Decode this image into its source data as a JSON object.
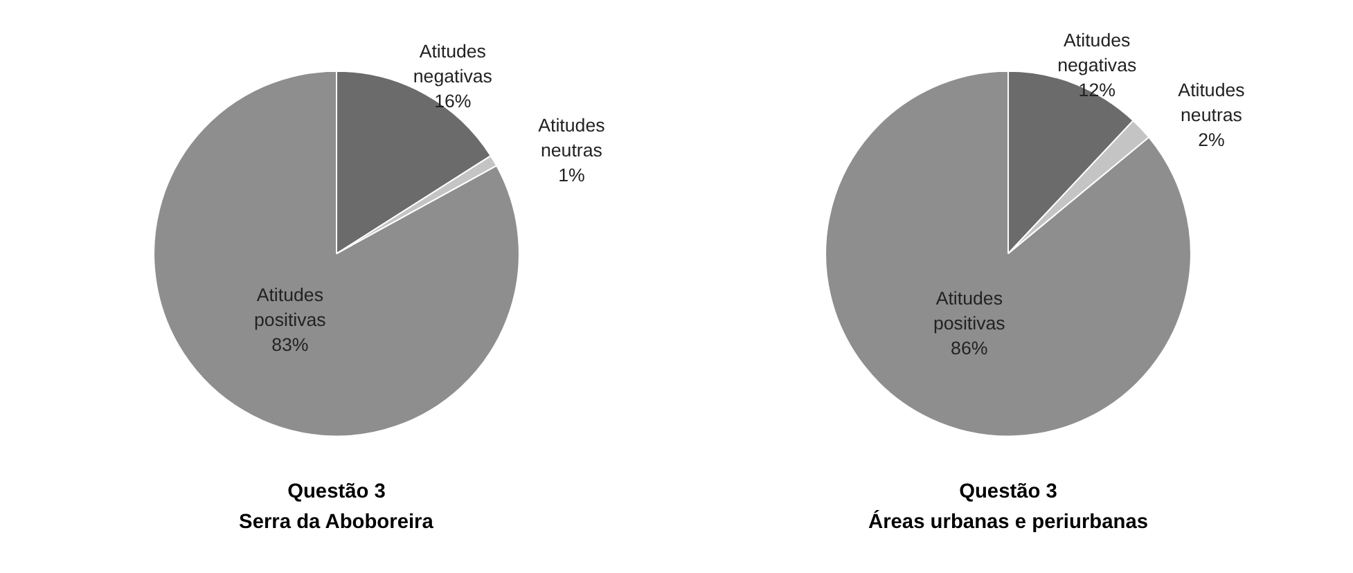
{
  "chart_data": [
    {
      "type": "pie",
      "title": "Questão 3",
      "subtitle": "Serra da Aboboreira",
      "categories": [
        "Atitudes negativas",
        "Atitudes neutras",
        "Atitudes positivas"
      ],
      "values": [
        16,
        1,
        83
      ],
      "value_labels": [
        "16%",
        "1%",
        "83%"
      ],
      "colors": [
        "#6b6b6b",
        "#c4c4c4",
        "#8e8e8e"
      ]
    },
    {
      "type": "pie",
      "title": "Questão 3",
      "subtitle": "Áreas urbanas e periurbanas",
      "categories": [
        "Atitudes negativas",
        "Atitudes neutras",
        "Atitudes positivas"
      ],
      "values": [
        12,
        2,
        86
      ],
      "value_labels": [
        "12%",
        "2%",
        "86%"
      ],
      "colors": [
        "#6b6b6b",
        "#c4c4c4",
        "#8e8e8e"
      ]
    }
  ]
}
